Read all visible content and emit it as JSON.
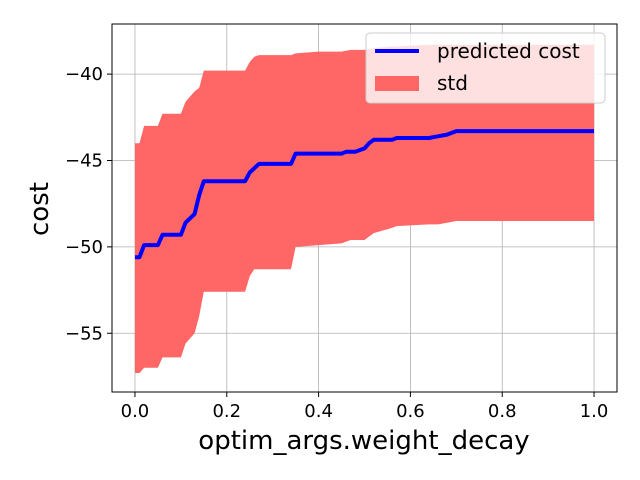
{
  "chart_data": {
    "type": "line",
    "xlabel": "optim_args.weight_decay",
    "ylabel": "cost",
    "xlim": [
      -0.05,
      1.05
    ],
    "ylim": [
      -58.4,
      -37.1
    ],
    "xticks": [
      0.0,
      0.2,
      0.4,
      0.6,
      0.8,
      1.0
    ],
    "xtick_labels": [
      "0.0",
      "0.2",
      "0.4",
      "0.6",
      "0.8",
      "1.0"
    ],
    "yticks": [
      -55,
      -50,
      -45,
      -40
    ],
    "ytick_labels": [
      "−55",
      "−50",
      "−45",
      "−40"
    ],
    "grid": true,
    "legend": {
      "placement": "top-right",
      "entries": [
        {
          "label": "predicted cost",
          "kind": "line",
          "color": "#0000ff"
        },
        {
          "label": "std",
          "kind": "patch",
          "color": "#ff6666"
        }
      ]
    },
    "series": [
      {
        "name": "predicted cost",
        "color": "#0000ff",
        "x": [
          0.0,
          0.01,
          0.02,
          0.05,
          0.06,
          0.1,
          0.11,
          0.13,
          0.14,
          0.15,
          0.16,
          0.24,
          0.25,
          0.27,
          0.28,
          0.34,
          0.35,
          0.45,
          0.46,
          0.48,
          0.5,
          0.51,
          0.52,
          0.56,
          0.57,
          0.64,
          0.66,
          0.68,
          0.7,
          1.0
        ],
        "y": [
          -50.6,
          -50.6,
          -49.9,
          -49.9,
          -49.3,
          -49.3,
          -48.6,
          -48.1,
          -47.0,
          -46.2,
          -46.2,
          -46.2,
          -45.7,
          -45.2,
          -45.2,
          -45.2,
          -44.6,
          -44.6,
          -44.5,
          -44.5,
          -44.3,
          -44.0,
          -43.8,
          -43.8,
          -43.7,
          -43.7,
          -43.6,
          -43.5,
          -43.3,
          -43.3
        ]
      }
    ],
    "band": {
      "name": "std",
      "color": "#ff6666",
      "x": [
        0.0,
        0.01,
        0.02,
        0.05,
        0.06,
        0.1,
        0.11,
        0.12,
        0.13,
        0.14,
        0.15,
        0.16,
        0.24,
        0.25,
        0.26,
        0.27,
        0.28,
        0.34,
        0.35,
        0.4,
        0.45,
        0.47,
        0.5,
        0.52,
        0.56,
        0.57,
        0.64,
        0.66,
        0.68,
        0.7,
        1.0
      ],
      "upper": [
        -44.0,
        -44.0,
        -43.0,
        -43.0,
        -42.3,
        -42.3,
        -41.6,
        -41.3,
        -41.0,
        -40.8,
        -39.8,
        -39.8,
        -39.8,
        -39.3,
        -39.0,
        -38.9,
        -38.9,
        -38.9,
        -38.8,
        -38.7,
        -38.7,
        -38.6,
        -38.6,
        -38.5,
        -38.4,
        -38.4,
        -38.3,
        -38.3,
        -38.3,
        -38.3,
        -38.3
      ],
      "lower": [
        -57.3,
        -57.3,
        -57.0,
        -57.0,
        -56.4,
        -56.4,
        -55.6,
        -55.3,
        -55.0,
        -54.0,
        -52.6,
        -52.6,
        -52.6,
        -51.7,
        -51.3,
        -51.3,
        -51.3,
        -51.3,
        -50.0,
        -49.9,
        -49.8,
        -49.6,
        -49.6,
        -49.2,
        -48.9,
        -48.8,
        -48.7,
        -48.7,
        -48.6,
        -48.5,
        -48.5
      ]
    }
  }
}
